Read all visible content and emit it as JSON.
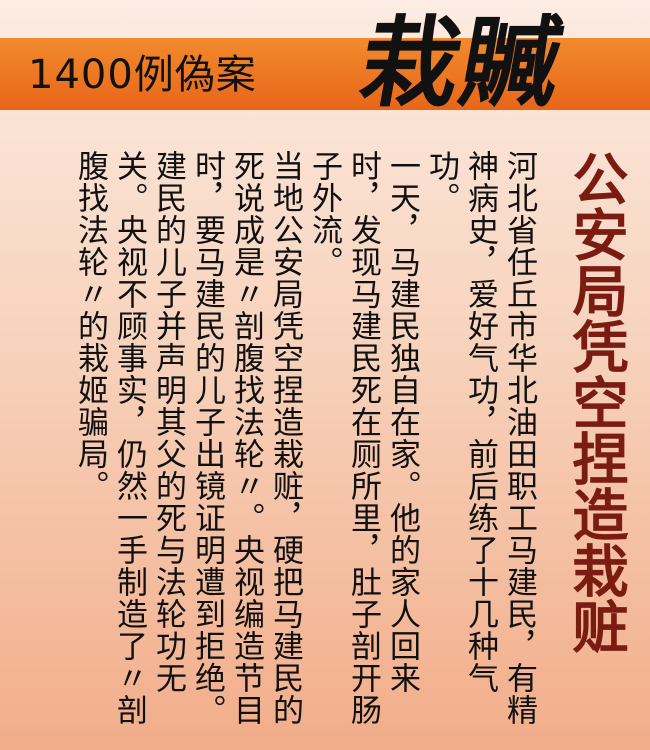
{
  "banner": {
    "subtitle": "1400例偽案",
    "title": "栽贓"
  },
  "headline": "公安局凭空捏造栽赃",
  "paragraphs": [
    "河北省任丘市华北油田职工马建民，有精神病史，爱好气功，前后练了十几种气功。",
    "一天，马建民独自在家。他的家人回来时，发现马建民死在厕所里，肚子剖开肠子外流。",
    "当地公安局凭空捏造栽赃，硬把马建民的死说成是〃剖腹找法轮〃。央视编造节目时，要马建民的儿子出镜证明遭到拒绝。",
    "建民的儿子并声明其父的死与法轮功无关。央视不顾事实，仍然一手制造了〃剖腹找法轮〃的栽姬骗局。"
  ],
  "colors": {
    "banner": "#e8661a",
    "headline": "#7a1c12",
    "background_top": "#fcece3",
    "background_bottom": "#f2ad8a"
  }
}
